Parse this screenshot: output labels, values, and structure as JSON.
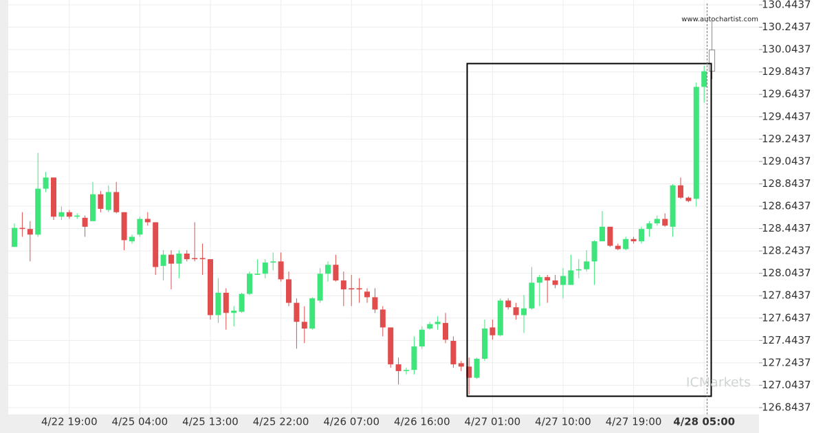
{
  "chart_data": {
    "type": "candlestick",
    "watermark": "www.autochartist.com",
    "logo": "ICMarkets",
    "x": [
      null,
      null,
      null,
      null,
      null,
      null,
      null,
      "4/22 19:00",
      null,
      null,
      null,
      null,
      null,
      null,
      null,
      null,
      "4/25 04:00",
      null,
      null,
      null,
      null,
      null,
      null,
      null,
      null,
      "4/25 13:00",
      null,
      null,
      null,
      null,
      null,
      null,
      null,
      null,
      "4/25 22:00",
      null,
      null,
      null,
      null,
      null,
      null,
      null,
      null,
      "4/26 07:00",
      null,
      null,
      null,
      null,
      null,
      null,
      null,
      null,
      "4/26 16:00",
      null,
      null,
      null,
      null,
      null,
      null,
      null,
      null,
      "4/27 01:00",
      null,
      null,
      null,
      null,
      null,
      null,
      null,
      null,
      "4/27 10:00",
      null,
      null,
      null,
      null,
      null,
      null,
      null,
      null,
      "4/27 19:00",
      null,
      null,
      null,
      null,
      null,
      null,
      null,
      null,
      "4/28 05:00",
      null
    ],
    "open": [
      128.28,
      128.45,
      128.44,
      128.39,
      128.8,
      128.9,
      128.55,
      128.59,
      128.55,
      128.54,
      128.51,
      128.75,
      128.61,
      128.77,
      128.59,
      128.33,
      128.39,
      128.53,
      128.5,
      128.11,
      128.21,
      128.13,
      128.22,
      128.18,
      128.18,
      128.17,
      127.67,
      127.87,
      127.69,
      127.7,
      127.86,
      128.03,
      128.04,
      128.14,
      128.15,
      127.99,
      127.78,
      127.61,
      127.55,
      127.8,
      128.04,
      128.12,
      127.98,
      127.91,
      127.91,
      127.88,
      127.83,
      127.72,
      127.56,
      127.23,
      127.17,
      127.18,
      127.39,
      127.55,
      127.59,
      127.6,
      127.44,
      127.24,
      127.21,
      127.11,
      127.28,
      127.56,
      127.49,
      127.8,
      127.74,
      127.67,
      127.73,
      127.96,
      128.01,
      127.98,
      127.94,
      127.94,
      128.07,
      128.08,
      128.15,
      128.33,
      128.46,
      128.29,
      128.26,
      128.35,
      128.33,
      128.44,
      128.49,
      128.53,
      128.46,
      128.83,
      128.72,
      128.71,
      129.71,
      129.85
    ],
    "high": [
      128.49,
      128.59,
      128.51,
      129.12,
      128.95,
      128.9,
      128.64,
      128.61,
      128.58,
      128.56,
      128.86,
      128.78,
      128.83,
      128.86,
      128.59,
      128.39,
      128.55,
      128.59,
      128.5,
      128.25,
      128.25,
      128.25,
      128.25,
      128.5,
      128.31,
      128.17,
      128.0,
      127.91,
      127.75,
      127.87,
      128.06,
      128.17,
      128.17,
      128.23,
      128.23,
      128.06,
      127.82,
      127.75,
      127.83,
      128.09,
      128.15,
      128.21,
      128.06,
      128.03,
      128.0,
      127.91,
      127.91,
      127.75,
      127.56,
      127.29,
      127.2,
      127.48,
      127.57,
      127.61,
      127.66,
      127.69,
      127.48,
      127.26,
      127.29,
      127.29,
      127.63,
      127.63,
      127.82,
      127.82,
      127.78,
      127.85,
      128.1,
      128.03,
      128.03,
      128.03,
      128.09,
      128.21,
      128.17,
      128.25,
      128.34,
      128.6,
      128.46,
      128.31,
      128.37,
      128.37,
      128.46,
      128.51,
      128.56,
      128.58,
      128.84,
      128.9,
      128.73,
      129.75,
      129.9,
      130.3
    ],
    "low": [
      128.28,
      128.37,
      128.15,
      128.37,
      128.77,
      128.52,
      128.52,
      128.53,
      128.53,
      128.37,
      128.51,
      128.59,
      128.59,
      128.58,
      128.25,
      128.31,
      128.37,
      128.47,
      128.03,
      127.98,
      127.9,
      128.0,
      128.15,
      128.15,
      128.03,
      127.63,
      127.6,
      127.54,
      127.57,
      127.69,
      127.85,
      128.03,
      128.0,
      128.07,
      127.97,
      127.75,
      127.37,
      127.42,
      127.54,
      127.78,
      127.97,
      127.97,
      127.75,
      127.75,
      127.78,
      127.78,
      127.69,
      127.48,
      127.2,
      127.05,
      127.14,
      127.14,
      127.37,
      127.54,
      127.54,
      127.42,
      127.2,
      127.17,
      126.96,
      127.1,
      127.26,
      127.45,
      127.48,
      127.72,
      127.63,
      127.51,
      127.72,
      127.75,
      127.78,
      127.91,
      127.82,
      127.94,
      128.0,
      128.06,
      127.94,
      128.33,
      128.28,
      128.25,
      128.25,
      128.31,
      128.31,
      128.37,
      128.47,
      128.46,
      128.37,
      128.71,
      128.68,
      128.64,
      129.57,
      129.78
    ],
    "close": [
      128.45,
      128.44,
      128.39,
      128.8,
      128.9,
      128.55,
      128.59,
      128.55,
      128.56,
      128.46,
      128.75,
      128.62,
      128.77,
      128.59,
      128.34,
      128.37,
      128.53,
      128.5,
      128.1,
      128.21,
      128.13,
      128.22,
      128.17,
      128.17,
      128.17,
      127.67,
      127.87,
      127.69,
      127.71,
      127.86,
      128.04,
      128.04,
      128.14,
      128.15,
      127.99,
      127.78,
      127.61,
      127.55,
      127.82,
      128.04,
      128.12,
      127.98,
      127.9,
      127.9,
      127.9,
      127.83,
      127.72,
      127.56,
      127.23,
      127.17,
      127.18,
      127.39,
      127.54,
      127.59,
      127.61,
      127.45,
      127.23,
      127.21,
      127.11,
      127.28,
      127.55,
      127.49,
      127.8,
      127.74,
      127.67,
      127.73,
      127.96,
      128.01,
      127.98,
      127.94,
      128.02,
      128.07,
      128.08,
      128.15,
      128.33,
      128.46,
      128.29,
      128.26,
      128.35,
      128.33,
      128.44,
      128.49,
      128.53,
      128.47,
      128.83,
      128.72,
      128.69,
      129.71,
      129.85,
      130.04
    ],
    "up_color": "#3ee57a",
    "down_color": "#e14c4c",
    "current_color": "#ffffff",
    "ylim": [
      126.8437,
      130.4437
    ],
    "yticks": [
      126.8437,
      127.0437,
      127.2437,
      127.4437,
      127.6437,
      127.8437,
      128.0437,
      128.2437,
      128.4437,
      128.6437,
      128.8437,
      129.0437,
      129.2437,
      129.4437,
      129.6437,
      129.8437,
      130.0437,
      130.2437,
      130.4437
    ],
    "grid": true
  }
}
